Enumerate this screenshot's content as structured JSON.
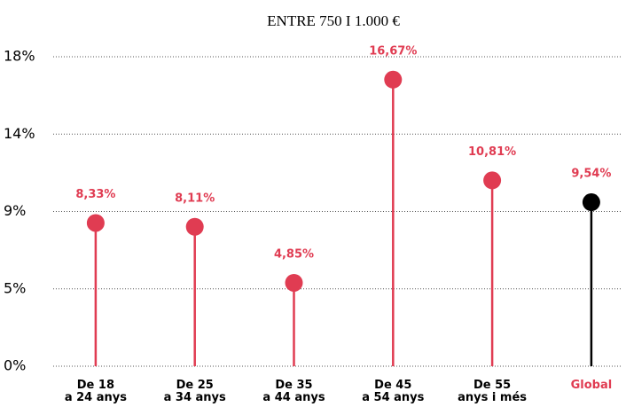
{
  "chart_data": {
    "type": "lollipop",
    "title": "ENTRE 750 I 1.000 €",
    "categories": [
      "De 18\na 24 anys",
      "De 25\na 34 anys",
      "De 35\na 44 anys",
      "De 45\na 54 anys",
      "De 55\nanys i més",
      "Global"
    ],
    "values": [
      8.33,
      8.11,
      4.85,
      16.67,
      10.81,
      9.54
    ],
    "value_labels": [
      "8,33%",
      "8,11%",
      "4,85%",
      "16,67%",
      "10,81%",
      "9,54%"
    ],
    "colors": [
      "#e03c52",
      "#e03c52",
      "#e03c52",
      "#e03c52",
      "#e03c52",
      "#000000"
    ],
    "label_colors": [
      "#000000",
      "#000000",
      "#000000",
      "#000000",
      "#000000",
      "#e03c52"
    ],
    "value_label_color": "#e03c52",
    "ylim": [
      0,
      18
    ],
    "yticks": [
      {
        "value": 0,
        "label": "0%"
      },
      {
        "value": 4.5,
        "label": "5%"
      },
      {
        "value": 9,
        "label": "9%"
      },
      {
        "value": 13.5,
        "label": "14%"
      },
      {
        "value": 18,
        "label": "18%"
      }
    ],
    "grid": true
  }
}
